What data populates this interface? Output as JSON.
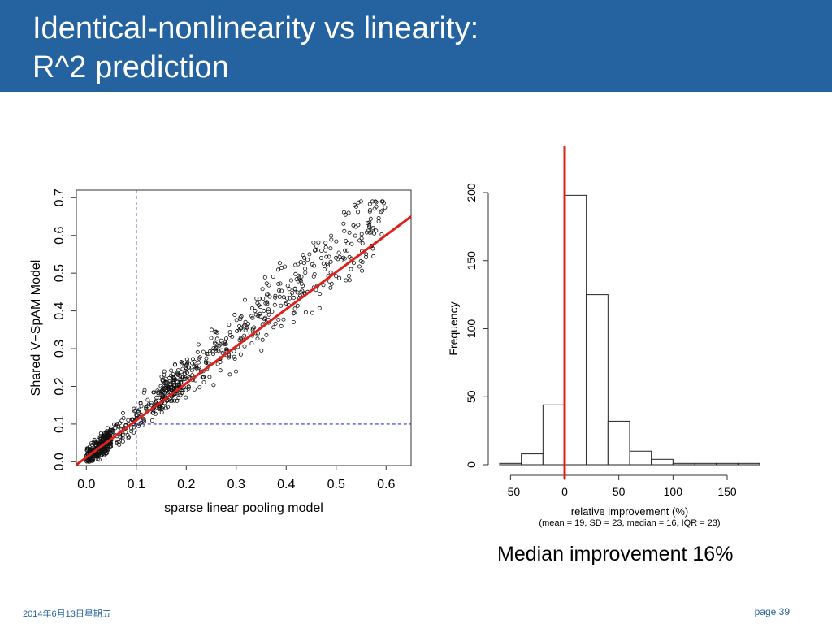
{
  "slide": {
    "title_line1": "Identical-nonlinearity vs linearity:",
    "title_line2": "R^2 prediction",
    "caption": "Median improvement 16%",
    "footer_date": "2014年6月13日星期五",
    "footer_date_overlay": "2014-6-13",
    "footer_page": "page 39",
    "header_color": "#2463a0"
  },
  "chart_data": [
    {
      "type": "scatter",
      "title": "",
      "xlabel": "sparse linear pooling model",
      "ylabel": "Shared V−SpAM Model",
      "xlim": [
        -0.02,
        0.65
      ],
      "ylim": [
        -0.01,
        0.72
      ],
      "xticks": [
        "0.0",
        "0.1",
        "0.2",
        "0.3",
        "0.4",
        "0.5",
        "0.6"
      ],
      "yticks": [
        "0.0",
        "0.1",
        "0.2",
        "0.3",
        "0.4",
        "0.5",
        "0.6",
        "0.7"
      ],
      "reference_lines": [
        {
          "kind": "dashed-vertical",
          "x": 0.1,
          "y_to": 0.72,
          "color": "#3333cc"
        },
        {
          "kind": "dashed-horizontal",
          "y": 0.1,
          "x_from": 0.1,
          "color": "#3333cc"
        },
        {
          "kind": "fit-line",
          "from": [
            -0.02,
            -0.008
          ],
          "to": [
            0.65,
            0.65
          ],
          "color": "#e0201b"
        }
      ],
      "points_description": "roughly 1000 open circles clustered along the diagonal, dense near origin"
    },
    {
      "type": "bar",
      "title": "",
      "xlabel": "relative improvement (%)",
      "xlabel_sub": "(mean = 19,  SD = 23,  median = 16, IQR = 23)",
      "ylabel": "Frequency",
      "xticks": [
        "−50",
        "0",
        "50",
        "100",
        "150"
      ],
      "yticks": [
        "0",
        "50",
        "100",
        "150",
        "200"
      ],
      "ylim": [
        0,
        200
      ],
      "bin_width": 20,
      "bins": [
        {
          "x0": -60,
          "x1": -40,
          "value": 1
        },
        {
          "x0": -40,
          "x1": -20,
          "value": 8
        },
        {
          "x0": -20,
          "x1": 0,
          "value": 44
        },
        {
          "x0": 0,
          "x1": 20,
          "value": 198
        },
        {
          "x0": 20,
          "x1": 40,
          "value": 125
        },
        {
          "x0": 40,
          "x1": 60,
          "value": 32
        },
        {
          "x0": 60,
          "x1": 80,
          "value": 10
        },
        {
          "x0": 80,
          "x1": 100,
          "value": 4
        },
        {
          "x0": 100,
          "x1": 120,
          "value": 1
        },
        {
          "x0": 120,
          "x1": 140,
          "value": 1
        },
        {
          "x0": 140,
          "x1": 160,
          "value": 1
        },
        {
          "x0": 160,
          "x1": 180,
          "value": 1
        }
      ],
      "reference_line": {
        "x": 0,
        "color": "#e0201b"
      }
    }
  ]
}
